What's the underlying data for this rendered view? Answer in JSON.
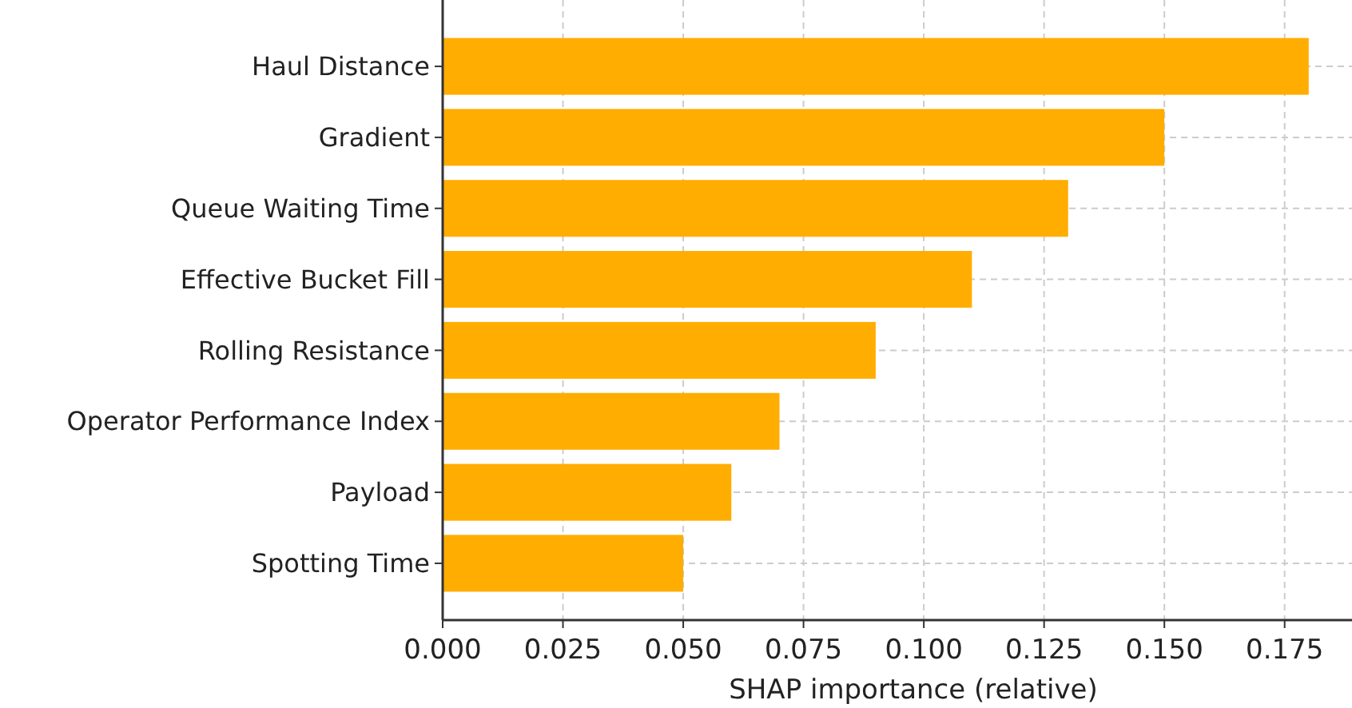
{
  "chart_data": {
    "type": "bar",
    "orientation": "horizontal",
    "xlabel": "SHAP importance (relative)",
    "categories": [
      "Haul Distance",
      "Gradient",
      "Queue Waiting Time",
      "Effective Bucket Fill",
      "Rolling Resistance",
      "Operator Performance Index",
      "Payload",
      "Spotting Time"
    ],
    "values": [
      0.18,
      0.15,
      0.13,
      0.11,
      0.09,
      0.07,
      0.06,
      0.05
    ],
    "color": "#ffad00",
    "xlim": [
      0,
      0.189
    ],
    "xticks": [
      {
        "value": 0,
        "label": "0.000"
      },
      {
        "value": 0.025,
        "label": "0.025"
      },
      {
        "value": 0.05,
        "label": "0.050"
      },
      {
        "value": 0.075,
        "label": "0.075"
      },
      {
        "value": 0.1,
        "label": "0.100"
      },
      {
        "value": 0.125,
        "label": "0.125"
      },
      {
        "value": 0.15,
        "label": "0.150"
      },
      {
        "value": 0.175,
        "label": "0.175"
      }
    ],
    "grid": true
  }
}
